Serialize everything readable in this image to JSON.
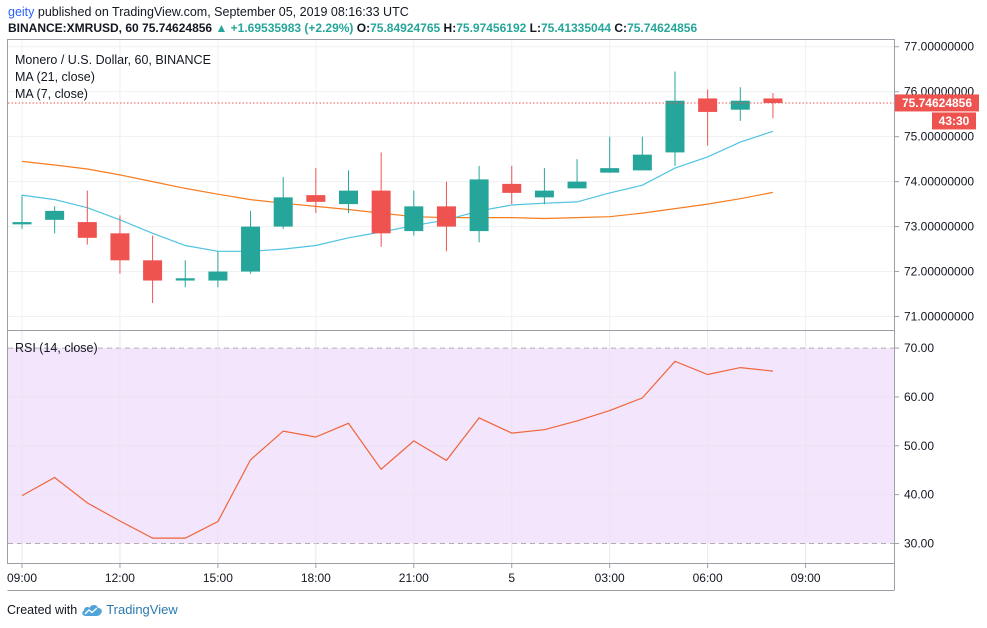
{
  "header": {
    "user": "geity",
    "published": "published on TradingView.com, September 05, 2019 08:16:33 UTC",
    "symbol_line": "BINANCE:XMRUSD, 60",
    "last": "75.74624856",
    "change": "▲ +1.69535983 (+2.29%)",
    "o_label": "O:",
    "o_value": "75.84924765",
    "h_label": "H:",
    "h_value": "75.97456192",
    "l_label": "L:",
    "l_value": "75.41335044",
    "c_label": "C:",
    "c_value": "75.74624856"
  },
  "legend": {
    "title": "Monero / U.S. Dollar, 60, BINANCE",
    "ma21": "MA (21, close)",
    "ma7": "MA (7, close)",
    "rsi": "RSI (14, close)"
  },
  "price_tag": "75.74624856",
  "countdown": "43:30",
  "footer": {
    "created_with": "Created with",
    "brand": "TradingView"
  },
  "colors": {
    "up": "#26a69a",
    "down": "#ef5350",
    "ma7": "#4ec3e0",
    "ma21": "#f57c1f",
    "rsi": "#f0653b",
    "rsi_band": "#f3e5fb"
  },
  "icons": {
    "logo": "tradingview-cloud-icon"
  },
  "chart_data": [
    {
      "type": "candlestick",
      "x": [
        "09:00",
        "10:00",
        "11:00",
        "12:00",
        "13:00",
        "14:00",
        "15:00",
        "16:00",
        "17:00",
        "18:00",
        "19:00",
        "20:00",
        "21:00",
        "22:00",
        "23:00",
        "00:00",
        "01:00",
        "02:00",
        "03:00",
        "04:00",
        "05:00",
        "06:00",
        "07:00",
        "08:00"
      ],
      "x_tick_labels": [
        "09:00",
        "12:00",
        "15:00",
        "18:00",
        "21:00",
        "5",
        "03:00",
        "06:00",
        "09:00"
      ],
      "ylim": [
        70.7,
        77.15
      ],
      "y_ticks": [
        "71.00000000",
        "72.00000000",
        "73.00000000",
        "74.00000000",
        "75.00000000",
        "76.00000000",
        "77.00000000"
      ],
      "y_tick_values": [
        71,
        72,
        73,
        74,
        75,
        76,
        77
      ],
      "open": [
        73.05,
        73.15,
        73.1,
        72.85,
        72.25,
        71.8,
        71.8,
        72.0,
        73.0,
        73.7,
        73.5,
        73.8,
        72.9,
        73.45,
        72.9,
        73.95,
        73.65,
        73.85,
        74.2,
        74.25,
        74.65,
        75.85,
        75.6,
        75.85
      ],
      "high": [
        73.7,
        73.45,
        73.8,
        73.25,
        72.8,
        72.25,
        72.45,
        73.35,
        74.1,
        74.3,
        74.25,
        74.65,
        73.8,
        74.0,
        74.35,
        74.35,
        74.3,
        74.5,
        75.0,
        75.0,
        76.45,
        76.05,
        76.1,
        75.97
      ],
      "low": [
        72.95,
        72.85,
        72.6,
        71.95,
        71.3,
        71.65,
        71.65,
        71.95,
        72.95,
        73.3,
        73.3,
        72.55,
        72.8,
        72.45,
        72.65,
        73.5,
        73.5,
        73.85,
        74.2,
        74.25,
        74.35,
        74.8,
        75.35,
        75.41
      ],
      "close": [
        73.1,
        73.35,
        72.75,
        72.25,
        71.8,
        71.85,
        72.0,
        73.0,
        73.65,
        73.55,
        73.8,
        72.85,
        73.45,
        73.0,
        74.05,
        73.75,
        73.8,
        74.0,
        74.3,
        74.6,
        75.8,
        75.55,
        75.8,
        75.75
      ],
      "ma21": [
        74.45,
        74.37,
        74.28,
        74.15,
        74.0,
        73.85,
        73.72,
        73.6,
        73.52,
        73.45,
        73.38,
        73.3,
        73.22,
        73.2,
        73.2,
        73.2,
        73.18,
        73.2,
        73.22,
        73.3,
        73.4,
        73.5,
        73.62,
        73.76
      ],
      "ma7": [
        73.7,
        73.6,
        73.42,
        73.15,
        72.85,
        72.58,
        72.45,
        72.45,
        72.5,
        72.58,
        72.75,
        72.88,
        73.02,
        73.15,
        73.35,
        73.48,
        73.52,
        73.55,
        73.75,
        73.92,
        74.3,
        74.55,
        74.88,
        75.12
      ],
      "series": [
        {
          "name": "MA (21, close)",
          "key": "ma21"
        },
        {
          "name": "MA (7, close)",
          "key": "ma7"
        }
      ]
    },
    {
      "type": "line",
      "ylim": [
        26,
        73.5
      ],
      "y_ticks": [
        "30.00",
        "40.00",
        "50.00",
        "60.00",
        "70.00"
      ],
      "y_tick_values": [
        30,
        40,
        50,
        60,
        70
      ],
      "band": [
        30,
        70
      ],
      "series": [
        {
          "name": "RSI (14, close)",
          "values": [
            39.8,
            43.5,
            38.3,
            34.6,
            31.1,
            31.1,
            34.5,
            47.1,
            53.0,
            51.8,
            54.6,
            45.2,
            51.0,
            47.0,
            55.7,
            52.6,
            53.3,
            55.1,
            57.2,
            59.8,
            67.3,
            64.6,
            66.0,
            65.3
          ]
        }
      ]
    }
  ]
}
